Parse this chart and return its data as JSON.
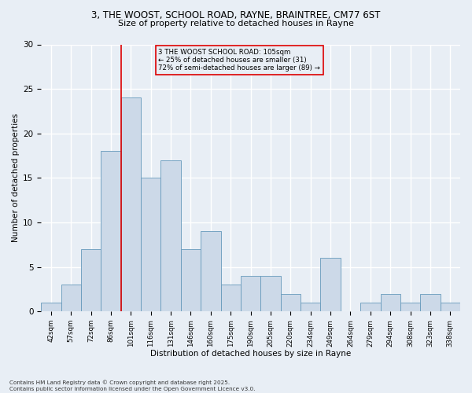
{
  "title_line1": "3, THE WOOST, SCHOOL ROAD, RAYNE, BRAINTREE, CM77 6ST",
  "title_line2": "Size of property relative to detached houses in Rayne",
  "xlabel": "Distribution of detached houses by size in Rayne",
  "ylabel": "Number of detached properties",
  "bin_labels": [
    "42sqm",
    "57sqm",
    "72sqm",
    "86sqm",
    "101sqm",
    "116sqm",
    "131sqm",
    "146sqm",
    "160sqm",
    "175sqm",
    "190sqm",
    "205sqm",
    "220sqm",
    "234sqm",
    "249sqm",
    "264sqm",
    "279sqm",
    "294sqm",
    "308sqm",
    "323sqm",
    "338sqm"
  ],
  "bar_values": [
    1,
    3,
    7,
    18,
    24,
    15,
    17,
    7,
    9,
    3,
    4,
    4,
    2,
    1,
    6,
    0,
    1,
    2,
    1,
    2,
    1
  ],
  "bar_color": "#ccd9e8",
  "bar_edge_color": "#6699bb",
  "background_color": "#e8eef5",
  "grid_color": "#ffffff",
  "annotation_line1": "3 THE WOOST SCHOOL ROAD: 105sqm",
  "annotation_line2": "← 25% of detached houses are smaller (31)",
  "annotation_line3": "72% of semi-detached houses are larger (89) →",
  "ref_bin_index": 4,
  "ref_line_color": "#dd0000",
  "ylim": [
    0,
    30
  ],
  "yticks": [
    0,
    5,
    10,
    15,
    20,
    25,
    30
  ],
  "footer_line1": "Contains HM Land Registry data © Crown copyright and database right 2025.",
  "footer_line2": "Contains public sector information licensed under the Open Government Licence v3.0."
}
